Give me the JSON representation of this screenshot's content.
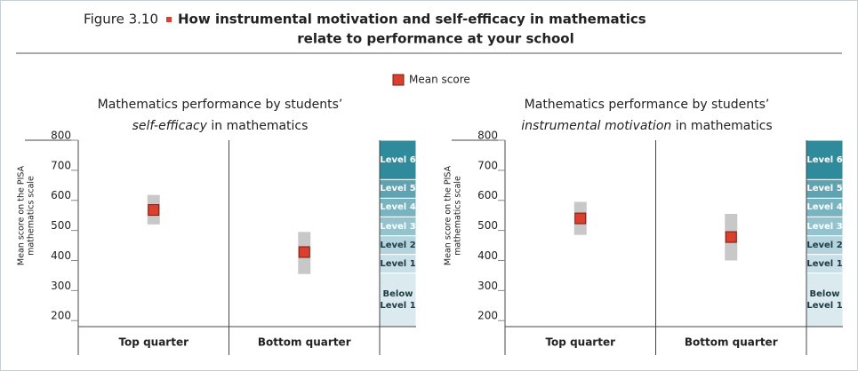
{
  "header": {
    "figure": "Figure 3.10",
    "title": [
      "How instrumental motivation and self-efficacy in mathematics",
      "relate to performance at your school"
    ]
  },
  "chart_data": [
    {
      "type": "range_dot",
      "title": {
        "line1": "Mathematics performance by students’",
        "emphasis": "self-efficacy",
        "rest": " in mathematics"
      },
      "ylabel": [
        "Mean score on the PISA",
        "mathematics scale"
      ],
      "categories": [
        "Top quarter",
        "Bottom quarter"
      ],
      "series": [
        {
          "name": "Mean score",
          "color": "#d9402e",
          "values": [
            568,
            428
          ],
          "low": [
            520,
            355
          ],
          "high": [
            618,
            495
          ]
        }
      ],
      "ylim": [
        180,
        800
      ],
      "yticks": [
        200,
        300,
        400,
        500,
        600,
        700,
        800
      ],
      "levels": [
        {
          "label": "Level 6",
          "from": 669,
          "to": 800,
          "color": "#2f8b9b",
          "text": "#ffffff"
        },
        {
          "label": "Level 5",
          "from": 607,
          "to": 669,
          "color": "#5fa3b2",
          "text": "#ffffff"
        },
        {
          "label": "Level 4",
          "from": 545,
          "to": 607,
          "color": "#7ab3c0",
          "text": "#ffffff"
        },
        {
          "label": "Level 3",
          "from": 482,
          "to": 545,
          "color": "#94c3ce",
          "text": "#ffffff"
        },
        {
          "label": "Level 2",
          "from": 420,
          "to": 482,
          "color": "#b3d4dc",
          "text": "#1f3a44"
        },
        {
          "label": "Level 1",
          "from": 358,
          "to": 420,
          "color": "#c9e0e6",
          "text": "#1f3a44"
        },
        {
          "label": "Below Level 1",
          "from": 180,
          "to": 358,
          "color": "#dbeaee",
          "text": "#1f3a44"
        }
      ]
    },
    {
      "type": "range_dot",
      "title": {
        "line1": "Mathematics performance by students’",
        "emphasis": "instrumental motivation",
        "rest": " in mathematics"
      },
      "ylabel": [
        "Mean score on the PISA",
        "mathematics scale"
      ],
      "categories": [
        "Top quarter",
        "Bottom quarter"
      ],
      "series": [
        {
          "name": "Mean score",
          "color": "#d9402e",
          "values": [
            540,
            478
          ],
          "low": [
            485,
            400
          ],
          "high": [
            595,
            555
          ]
        }
      ],
      "ylim": [
        180,
        800
      ],
      "yticks": [
        200,
        300,
        400,
        500,
        600,
        700,
        800
      ],
      "levels": [
        {
          "label": "Level 6",
          "from": 669,
          "to": 800,
          "color": "#2f8b9b",
          "text": "#ffffff"
        },
        {
          "label": "Level 5",
          "from": 607,
          "to": 669,
          "color": "#5fa3b2",
          "text": "#ffffff"
        },
        {
          "label": "Level 4",
          "from": 545,
          "to": 607,
          "color": "#7ab3c0",
          "text": "#ffffff"
        },
        {
          "label": "Level 3",
          "from": 482,
          "to": 545,
          "color": "#94c3ce",
          "text": "#ffffff"
        },
        {
          "label": "Level 2",
          "from": 420,
          "to": 482,
          "color": "#b3d4dc",
          "text": "#1f3a44"
        },
        {
          "label": "Level 1",
          "from": 358,
          "to": 420,
          "color": "#c9e0e6",
          "text": "#1f3a44"
        },
        {
          "label": "Below Level 1",
          "from": 180,
          "to": 358,
          "color": "#dbeaee",
          "text": "#1f3a44"
        }
      ]
    }
  ]
}
